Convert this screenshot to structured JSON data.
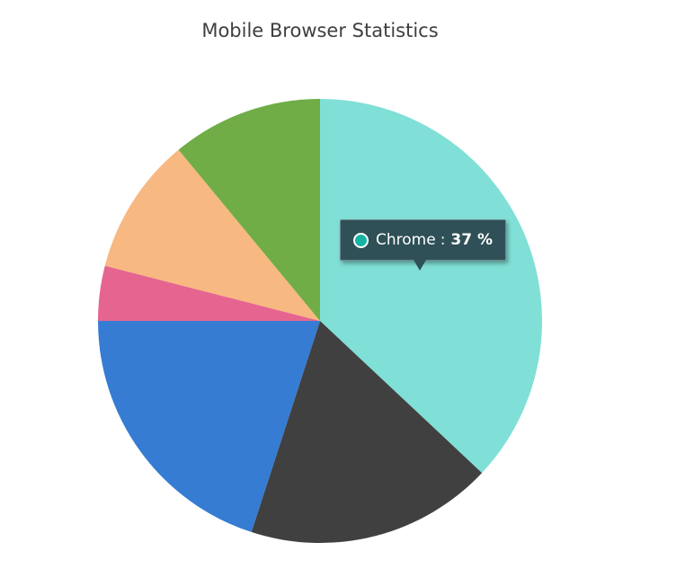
{
  "chart_data": {
    "type": "pie",
    "title": "Mobile Browser Statistics",
    "series": [
      {
        "points": [
          {
            "label": "Chrome",
            "value": 37,
            "color": "#80DFD6"
          },
          {
            "label": "",
            "value": 18,
            "color": "#404040"
          },
          {
            "label": "",
            "value": 20,
            "color": "#357CD2"
          },
          {
            "label": "",
            "value": 4,
            "color": "#E56590"
          },
          {
            "label": "",
            "value": 10,
            "color": "#F7B881"
          },
          {
            "label": "",
            "value": 11,
            "color": "#70AD47"
          }
        ]
      }
    ],
    "start_angle_deg": 0,
    "direction": "clockwise"
  },
  "tooltip": {
    "label": "Chrome",
    "separator": ":",
    "value": "37 %",
    "marker_color": "#14B3A4"
  }
}
